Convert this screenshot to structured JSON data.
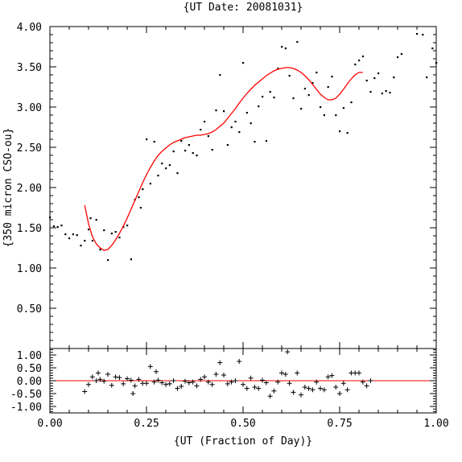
{
  "chart_data": [
    {
      "type": "scatter",
      "title": "{UT Date: 20081031}",
      "xlabel": "",
      "ylabel": "{350 micron CSO-ou}",
      "xlim": [
        0.0,
        1.0
      ],
      "ylim": [
        0.0,
        4.0
      ],
      "yticks": [
        "0.50",
        "1.00",
        "1.50",
        "2.00",
        "2.50",
        "3.00",
        "3.50",
        "4.00"
      ],
      "series": [
        {
          "points": [
            [
              0.0,
              1.63
            ],
            [
              0.01,
              1.52
            ],
            [
              0.02,
              1.51
            ],
            [
              0.03,
              1.53
            ],
            [
              0.04,
              1.42
            ],
            [
              0.05,
              1.37
            ],
            [
              0.06,
              1.42
            ],
            [
              0.07,
              1.41
            ],
            [
              0.08,
              1.28
            ],
            [
              0.09,
              1.34
            ],
            [
              0.1,
              1.48
            ],
            [
              0.105,
              1.62
            ],
            [
              0.11,
              1.34
            ],
            [
              0.12,
              1.6
            ],
            [
              0.13,
              1.23
            ],
            [
              0.14,
              1.47
            ],
            [
              0.15,
              1.1
            ],
            [
              0.16,
              1.43
            ],
            [
              0.17,
              1.45
            ],
            [
              0.18,
              1.38
            ],
            [
              0.19,
              1.51
            ],
            [
              0.2,
              1.53
            ],
            [
              0.21,
              1.11
            ],
            [
              0.22,
              1.85
            ],
            [
              0.23,
              1.88
            ],
            [
              0.235,
              1.75
            ],
            [
              0.24,
              1.98
            ],
            [
              0.25,
              2.6
            ],
            [
              0.26,
              2.05
            ],
            [
              0.27,
              2.57
            ],
            [
              0.28,
              2.15
            ],
            [
              0.29,
              2.3
            ],
            [
              0.3,
              2.24
            ],
            [
              0.31,
              2.28
            ],
            [
              0.32,
              2.45
            ],
            [
              0.33,
              2.18
            ],
            [
              0.34,
              2.58
            ],
            [
              0.35,
              2.46
            ],
            [
              0.36,
              2.53
            ],
            [
              0.37,
              2.43
            ],
            [
              0.38,
              2.4
            ],
            [
              0.39,
              2.72
            ],
            [
              0.4,
              2.82
            ],
            [
              0.41,
              2.64
            ],
            [
              0.42,
              2.47
            ],
            [
              0.43,
              2.96
            ],
            [
              0.44,
              3.4
            ],
            [
              0.45,
              2.95
            ],
            [
              0.46,
              2.53
            ],
            [
              0.47,
              2.75
            ],
            [
              0.48,
              2.82
            ],
            [
              0.49,
              2.69
            ],
            [
              0.5,
              3.55
            ],
            [
              0.51,
              2.93
            ],
            [
              0.52,
              2.8
            ],
            [
              0.53,
              2.57
            ],
            [
              0.54,
              3.01
            ],
            [
              0.55,
              3.13
            ],
            [
              0.56,
              2.58
            ],
            [
              0.57,
              3.19
            ],
            [
              0.58,
              3.12
            ],
            [
              0.59,
              3.48
            ],
            [
              0.6,
              3.75
            ],
            [
              0.61,
              3.73
            ],
            [
              0.62,
              3.39
            ],
            [
              0.63,
              3.11
            ],
            [
              0.64,
              3.81
            ],
            [
              0.65,
              2.98
            ],
            [
              0.66,
              3.23
            ],
            [
              0.67,
              3.15
            ],
            [
              0.68,
              3.3
            ],
            [
              0.69,
              3.43
            ],
            [
              0.7,
              3.0
            ],
            [
              0.71,
              2.9
            ],
            [
              0.72,
              3.25
            ],
            [
              0.73,
              3.38
            ],
            [
              0.74,
              2.9
            ],
            [
              0.75,
              2.7
            ],
            [
              0.76,
              2.99
            ],
            [
              0.77,
              2.68
            ],
            [
              0.78,
              3.06
            ],
            [
              0.79,
              3.53
            ],
            [
              0.8,
              3.58
            ],
            [
              0.81,
              3.63
            ],
            [
              0.82,
              3.33
            ],
            [
              0.83,
              3.19
            ],
            [
              0.84,
              3.36
            ],
            [
              0.85,
              3.42
            ],
            [
              0.86,
              3.17
            ],
            [
              0.87,
              3.2
            ],
            [
              0.88,
              3.18
            ],
            [
              0.89,
              3.37
            ],
            [
              0.9,
              3.62
            ],
            [
              0.91,
              3.66
            ],
            [
              0.95,
              3.91
            ],
            [
              0.965,
              3.9
            ],
            [
              0.975,
              3.37
            ],
            [
              0.99,
              3.73
            ],
            [
              1.0,
              3.55
            ]
          ]
        }
      ],
      "fit_curve": {
        "color": "#ff0000",
        "points": [
          [
            0.09,
            1.78
          ],
          [
            0.1,
            1.55
          ],
          [
            0.11,
            1.39
          ],
          [
            0.12,
            1.3
          ],
          [
            0.13,
            1.25
          ],
          [
            0.14,
            1.22
          ],
          [
            0.15,
            1.23
          ],
          [
            0.16,
            1.28
          ],
          [
            0.17,
            1.35
          ],
          [
            0.18,
            1.43
          ],
          [
            0.19,
            1.52
          ],
          [
            0.2,
            1.62
          ],
          [
            0.21,
            1.73
          ],
          [
            0.22,
            1.84
          ],
          [
            0.23,
            1.95
          ],
          [
            0.24,
            2.06
          ],
          [
            0.25,
            2.16
          ],
          [
            0.26,
            2.25
          ],
          [
            0.27,
            2.33
          ],
          [
            0.28,
            2.4
          ],
          [
            0.29,
            2.45
          ],
          [
            0.3,
            2.49
          ],
          [
            0.31,
            2.53
          ],
          [
            0.32,
            2.56
          ],
          [
            0.33,
            2.58
          ],
          [
            0.34,
            2.6
          ],
          [
            0.35,
            2.62
          ],
          [
            0.36,
            2.63
          ],
          [
            0.37,
            2.64
          ],
          [
            0.38,
            2.65
          ],
          [
            0.39,
            2.65
          ],
          [
            0.4,
            2.66
          ],
          [
            0.41,
            2.67
          ],
          [
            0.42,
            2.69
          ],
          [
            0.43,
            2.72
          ],
          [
            0.44,
            2.76
          ],
          [
            0.45,
            2.8
          ],
          [
            0.46,
            2.86
          ],
          [
            0.47,
            2.92
          ],
          [
            0.48,
            2.98
          ],
          [
            0.49,
            3.05
          ],
          [
            0.5,
            3.11
          ],
          [
            0.51,
            3.17
          ],
          [
            0.52,
            3.22
          ],
          [
            0.53,
            3.27
          ],
          [
            0.54,
            3.31
          ],
          [
            0.55,
            3.35
          ],
          [
            0.56,
            3.39
          ],
          [
            0.57,
            3.42
          ],
          [
            0.58,
            3.45
          ],
          [
            0.59,
            3.47
          ],
          [
            0.6,
            3.48
          ],
          [
            0.61,
            3.49
          ],
          [
            0.62,
            3.49
          ],
          [
            0.63,
            3.48
          ],
          [
            0.64,
            3.46
          ],
          [
            0.65,
            3.43
          ],
          [
            0.66,
            3.39
          ],
          [
            0.67,
            3.34
          ],
          [
            0.68,
            3.28
          ],
          [
            0.69,
            3.22
          ],
          [
            0.7,
            3.16
          ],
          [
            0.71,
            3.12
          ],
          [
            0.72,
            3.09
          ],
          [
            0.73,
            3.09
          ],
          [
            0.74,
            3.11
          ],
          [
            0.75,
            3.16
          ],
          [
            0.76,
            3.22
          ],
          [
            0.77,
            3.29
          ],
          [
            0.78,
            3.35
          ],
          [
            0.79,
            3.4
          ],
          [
            0.8,
            3.43
          ],
          [
            0.81,
            3.43
          ]
        ]
      }
    },
    {
      "type": "scatter",
      "title": "",
      "xlabel": "{UT (Fraction of Day)}",
      "ylabel": "",
      "xlim": [
        0.0,
        1.0
      ],
      "ylim": [
        -1.25,
        1.25
      ],
      "xticks": [
        "0.00",
        "0.25",
        "0.50",
        "0.75",
        "1.00"
      ],
      "yticks": [
        "-1.00",
        "-0.50",
        "0.00",
        "0.50",
        "1.00"
      ],
      "zero_line_color": "#ff0000",
      "series": [
        {
          "marker": "+",
          "points": [
            [
              0.09,
              -0.42
            ],
            [
              0.1,
              -0.15
            ],
            [
              0.11,
              0.15
            ],
            [
              0.12,
              0.0
            ],
            [
              0.125,
              0.3
            ],
            [
              0.13,
              0.05
            ],
            [
              0.14,
              -0.02
            ],
            [
              0.15,
              0.25
            ],
            [
              0.16,
              -0.18
            ],
            [
              0.17,
              0.15
            ],
            [
              0.18,
              0.12
            ],
            [
              0.19,
              -0.12
            ],
            [
              0.2,
              0.08
            ],
            [
              0.21,
              0.02
            ],
            [
              0.215,
              -0.5
            ],
            [
              0.22,
              -0.2
            ],
            [
              0.23,
              0.05
            ],
            [
              0.24,
              -0.1
            ],
            [
              0.25,
              -0.1
            ],
            [
              0.26,
              0.55
            ],
            [
              0.27,
              -0.05
            ],
            [
              0.275,
              0.35
            ],
            [
              0.28,
              0.02
            ],
            [
              0.29,
              -0.08
            ],
            [
              0.3,
              -0.15
            ],
            [
              0.31,
              -0.12
            ],
            [
              0.32,
              0.0
            ],
            [
              0.33,
              -0.3
            ],
            [
              0.34,
              -0.22
            ],
            [
              0.35,
              -0.02
            ],
            [
              0.36,
              -0.08
            ],
            [
              0.37,
              -0.05
            ],
            [
              0.38,
              -0.2
            ],
            [
              0.39,
              0.05
            ],
            [
              0.4,
              0.15
            ],
            [
              0.41,
              -0.05
            ],
            [
              0.42,
              -0.15
            ],
            [
              0.43,
              0.25
            ],
            [
              0.44,
              0.7
            ],
            [
              0.45,
              0.22
            ],
            [
              0.46,
              -0.12
            ],
            [
              0.47,
              -0.05
            ],
            [
              0.48,
              0.0
            ],
            [
              0.49,
              0.75
            ],
            [
              0.5,
              -0.15
            ],
            [
              0.51,
              -0.3
            ],
            [
              0.52,
              0.1
            ],
            [
              0.53,
              -0.25
            ],
            [
              0.54,
              -0.3
            ],
            [
              0.55,
              0.02
            ],
            [
              0.56,
              -0.08
            ],
            [
              0.57,
              -0.6
            ],
            [
              0.58,
              -0.4
            ],
            [
              0.59,
              -0.05
            ],
            [
              0.6,
              0.3
            ],
            [
              0.61,
              0.25
            ],
            [
              0.615,
              1.12
            ],
            [
              0.62,
              -0.1
            ],
            [
              0.63,
              -0.45
            ],
            [
              0.64,
              0.3
            ],
            [
              0.65,
              -0.55
            ],
            [
              0.66,
              -0.25
            ],
            [
              0.67,
              -0.3
            ],
            [
              0.68,
              -0.35
            ],
            [
              0.69,
              -0.05
            ],
            [
              0.7,
              -0.3
            ],
            [
              0.71,
              -0.35
            ],
            [
              0.72,
              0.15
            ],
            [
              0.73,
              0.2
            ],
            [
              0.74,
              -0.25
            ],
            [
              0.75,
              -0.5
            ],
            [
              0.76,
              -0.1
            ],
            [
              0.77,
              -0.35
            ],
            [
              0.78,
              0.3
            ],
            [
              0.79,
              0.3
            ],
            [
              0.8,
              0.3
            ],
            [
              0.81,
              -0.05
            ],
            [
              0.82,
              -0.2
            ],
            [
              0.83,
              0.0
            ]
          ]
        }
      ]
    }
  ]
}
